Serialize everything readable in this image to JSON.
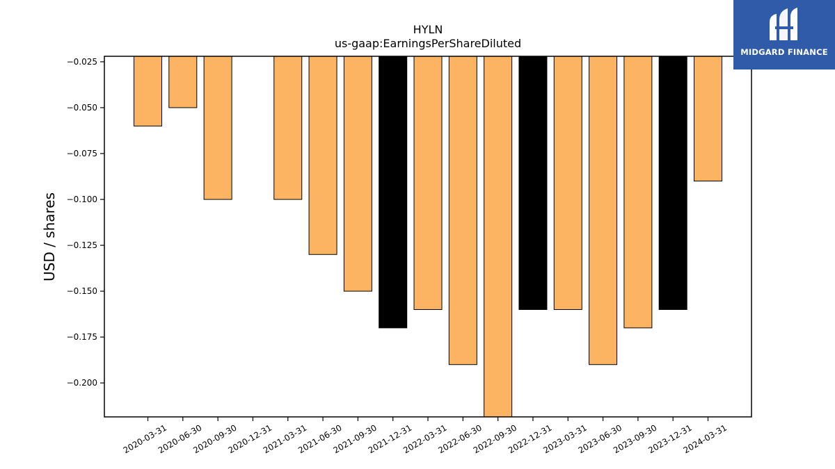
{
  "chart_data": {
    "type": "bar",
    "title": "HYLN",
    "subtitle": "us-gaap:EarningsPerShareDiluted",
    "xlabel": "",
    "ylabel": "USD / shares",
    "ylim": [
      -0.2185,
      -0.022
    ],
    "yticks": [
      -0.025,
      -0.05,
      -0.075,
      -0.1,
      -0.125,
      -0.15,
      -0.175,
      -0.2
    ],
    "ytick_labels": [
      "−0.025",
      "−0.050",
      "−0.075",
      "−0.100",
      "−0.125",
      "−0.150",
      "−0.175",
      "−0.200"
    ],
    "categories": [
      "2020-03-31",
      "2020-06-30",
      "2020-09-30",
      "2020-12-31",
      "2021-03-31",
      "2021-06-30",
      "2021-09-30",
      "2021-12-31",
      "2022-03-31",
      "2022-06-30",
      "2022-09-30",
      "2022-12-31",
      "2023-03-31",
      "2023-06-30",
      "2023-09-30",
      "2023-12-31",
      "2024-03-31"
    ],
    "values": [
      -0.06,
      -0.05,
      -0.1,
      null,
      -0.1,
      -0.13,
      -0.15,
      -0.17,
      -0.16,
      -0.19,
      -0.22,
      -0.16,
      -0.16,
      -0.19,
      -0.17,
      -0.16,
      -0.09
    ],
    "bar_colors": [
      "#fdb462",
      "#fdb462",
      "#fdb462",
      null,
      "#fdb462",
      "#fdb462",
      "#fdb462",
      "#000000",
      "#fdb462",
      "#fdb462",
      "#fdb462",
      "#000000",
      "#fdb462",
      "#fdb462",
      "#fdb462",
      "#000000",
      "#fdb462"
    ],
    "grid": false,
    "legend": "none"
  },
  "logo": {
    "text": "MIDGARD FINANCE",
    "color": "#2f5ba8"
  }
}
